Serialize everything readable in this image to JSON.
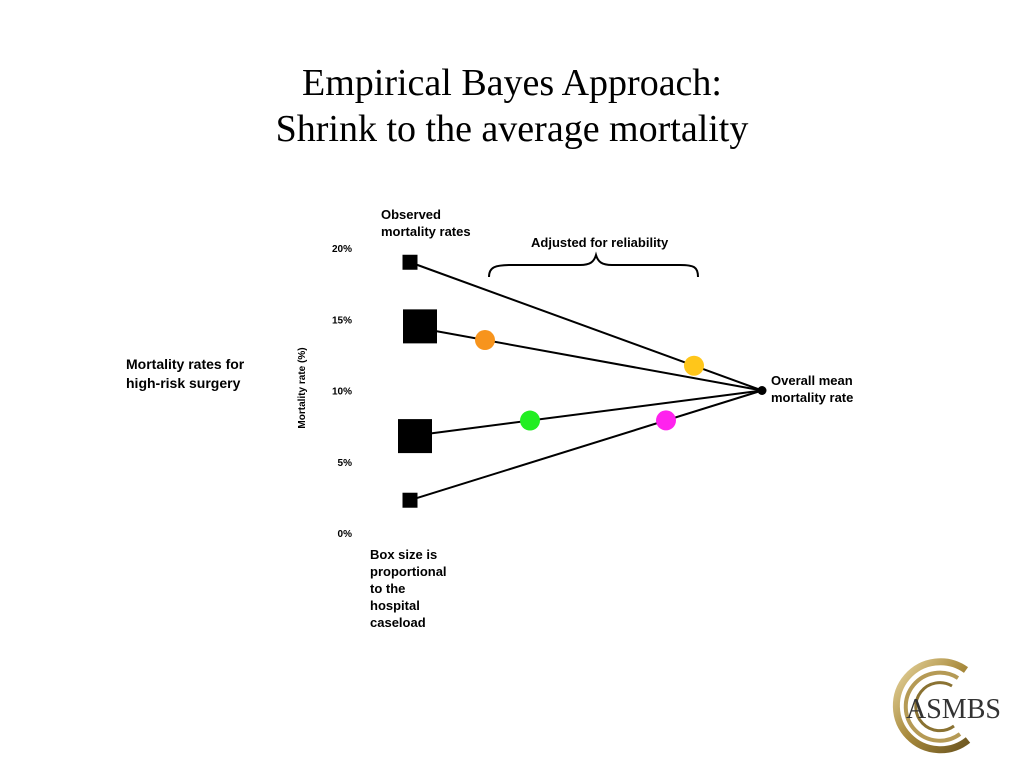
{
  "title": {
    "line1": "Empirical Bayes Approach:",
    "line2": "Shrink to the average mortality"
  },
  "labels": {
    "side_line1": "Mortality rates for",
    "side_line2": "high-risk surgery",
    "observed_line1": "Observed",
    "observed_line2": "mortality rates",
    "adjusted": "Adjusted for reliability",
    "mean_line1": "Overall mean",
    "mean_line2": "mortality rate",
    "note_lines": [
      "Box size is",
      "proportional",
      "to the",
      "hospital",
      "caseload"
    ]
  },
  "logo": {
    "text": "ASMBS"
  },
  "chart_data": {
    "type": "scatter",
    "ylabel": "Mortality rate (%)",
    "yticks": [
      "0%",
      "5%",
      "10%",
      "15%",
      "20%"
    ],
    "ytick_values": [
      0,
      5,
      10,
      15,
      20
    ],
    "ylim": [
      0,
      20
    ],
    "overall_mean": 10.0,
    "hospitals": [
      {
        "observed": 19.0,
        "box": "small",
        "adjusted": 11.8,
        "color": "#ffc61a"
      },
      {
        "observed": 14.5,
        "box": "large",
        "adjusted": 13.9,
        "color": "#f7941d"
      },
      {
        "observed": 6.8,
        "box": "large",
        "adjusted": 8.3,
        "color": "#22ee22"
      },
      {
        "observed": 2.3,
        "box": "small",
        "adjusted": 8.4,
        "color": "#ff22ee"
      }
    ]
  }
}
